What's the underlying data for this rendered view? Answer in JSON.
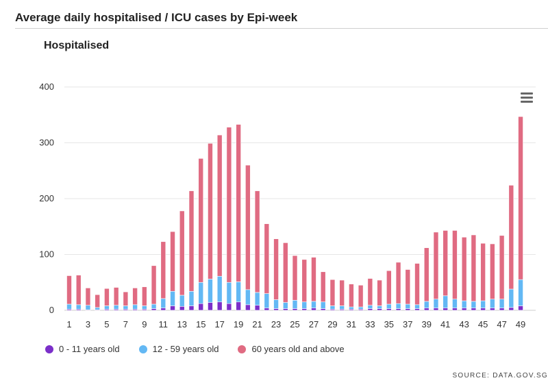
{
  "header": {
    "title": "Average daily hospitalised / ICU cases by Epi-week",
    "source": "SOURCE: DATA.GOV.SG"
  },
  "menu": {
    "icon": "hamburger-menu-icon"
  },
  "chart_data": {
    "type": "bar",
    "stacked": true,
    "title": "Hospitalised",
    "xlabel": "",
    "ylabel": "",
    "ylim": [
      0,
      400
    ],
    "yticks": [
      0,
      100,
      200,
      300,
      400
    ],
    "grid": true,
    "legend_position": "bottom-left",
    "categories": [
      1,
      2,
      3,
      4,
      5,
      6,
      7,
      8,
      9,
      10,
      11,
      12,
      13,
      14,
      15,
      16,
      17,
      18,
      19,
      20,
      21,
      22,
      23,
      24,
      25,
      26,
      27,
      28,
      29,
      30,
      31,
      32,
      33,
      34,
      35,
      36,
      37,
      38,
      39,
      40,
      41,
      42,
      43,
      44,
      45,
      46,
      47,
      48,
      49
    ],
    "xtick_labels": [
      "1",
      "3",
      "5",
      "7",
      "9",
      "11",
      "13",
      "15",
      "17",
      "19",
      "21",
      "23",
      "25",
      "27",
      "29",
      "31",
      "33",
      "35",
      "37",
      "39",
      "41",
      "43",
      "45",
      "47",
      "49"
    ],
    "series": [
      {
        "name": "0 - 11 years old",
        "color": "#7b2fc9",
        "values": [
          2,
          2,
          1,
          1,
          2,
          2,
          2,
          2,
          2,
          3,
          4,
          8,
          7,
          8,
          12,
          14,
          15,
          12,
          15,
          10,
          9,
          4,
          3,
          3,
          3,
          3,
          4,
          3,
          2,
          2,
          2,
          2,
          3,
          3,
          3,
          3,
          3,
          3,
          4,
          4,
          4,
          4,
          4,
          4,
          4,
          4,
          4,
          5,
          8
        ]
      },
      {
        "name": "12 - 59 years old",
        "color": "#63b8f4",
        "values": [
          9,
          8,
          8,
          4,
          6,
          7,
          6,
          8,
          6,
          8,
          17,
          26,
          20,
          26,
          38,
          42,
          46,
          38,
          36,
          27,
          23,
          26,
          16,
          11,
          15,
          12,
          12,
          12,
          6,
          6,
          4,
          4,
          6,
          5,
          8,
          9,
          8,
          7,
          12,
          16,
          22,
          16,
          13,
          12,
          13,
          16,
          16,
          33,
          47
        ]
      },
      {
        "name": "60 years old and above",
        "color": "#e06b82",
        "values": [
          51,
          53,
          31,
          23,
          31,
          32,
          25,
          30,
          34,
          69,
          102,
          107,
          151,
          180,
          222,
          243,
          253,
          278,
          282,
          223,
          182,
          125,
          109,
          107,
          80,
          76,
          79,
          54,
          47,
          46,
          41,
          39,
          48,
          46,
          60,
          74,
          62,
          74,
          96,
          120,
          117,
          123,
          114,
          119,
          103,
          99,
          114,
          186,
          292
        ]
      }
    ]
  }
}
